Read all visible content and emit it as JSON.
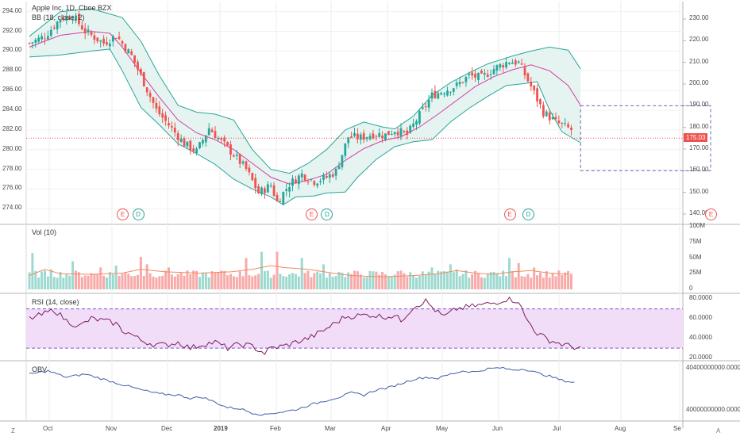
{
  "header": {
    "symbol_title": "Apple Inc, 1D, Cboe BZX",
    "bb_label": "BB (18, close, 2)",
    "vol_label": "Vol (10)",
    "rsi_label": "RSI (14, close)",
    "obv_label": "OBV"
  },
  "price_tag": "175.03",
  "corner_left": "Z",
  "corner_right": "A",
  "colors": {
    "up": "#26a69a",
    "down": "#ef5350",
    "bb_band": "#26a69a",
    "bb_fill": "#e6f4f1",
    "bb_mid": "#d63ca5",
    "rsi_line": "#7b1f64",
    "rsi_fill": "#f1ddf8",
    "rsi_level": "#7e57c2",
    "vol_ma": "#f28b62",
    "obv_line": "#3f5fa8",
    "rect": "#5c6bc0",
    "price_line": "#ef5350"
  },
  "chart_data": [
    {
      "type": "candlestick",
      "name": "price",
      "left_axis": {
        "ylim": [
          273.3,
          294.7
        ],
        "ticks": [
          "274.00",
          "276.00",
          "278.00",
          "280.00",
          "282.00",
          "284.00",
          "286.00",
          "288.00",
          "290.00",
          "292.00",
          "294.00"
        ]
      },
      "right_axis": {
        "ticks": [
          "140.00",
          "150.00",
          "160.00",
          "170.00",
          "180.00",
          "190.00",
          "200.00",
          "210.00",
          "220.00",
          "230.00"
        ]
      },
      "x_labels": [
        "Oct",
        "Nov",
        "Dec",
        "2019",
        "Feb",
        "Mar",
        "Apr",
        "May",
        "Jun",
        "Jul",
        "Aug",
        "Se"
      ],
      "last_price": 175.03,
      "close_path": [
        [
          0,
          290.8
        ],
        [
          5,
          291.5
        ],
        [
          10,
          293.3
        ],
        [
          14,
          293.6
        ],
        [
          18,
          292.0
        ],
        [
          24,
          290.8
        ],
        [
          28,
          291.6
        ],
        [
          33,
          289.5
        ],
        [
          37,
          286.8
        ],
        [
          41,
          284.0
        ],
        [
          45,
          282.5
        ],
        [
          50,
          280.6
        ],
        [
          54,
          279.8
        ],
        [
          58,
          282.2
        ],
        [
          62,
          280.8
        ],
        [
          66,
          279.5
        ],
        [
          70,
          278.0
        ],
        [
          74,
          275.6
        ],
        [
          78,
          276.4
        ],
        [
          80,
          274.7
        ],
        [
          84,
          276.5
        ],
        [
          88,
          277.5
        ],
        [
          92,
          276.8
        ],
        [
          96,
          277.2
        ],
        [
          99,
          277.8
        ],
        [
          103,
          281.3
        ],
        [
          107,
          281.2
        ],
        [
          111,
          281.6
        ],
        [
          115,
          281.5
        ],
        [
          118,
          282.0
        ],
        [
          122,
          281.5
        ],
        [
          126,
          283.5
        ],
        [
          130,
          285.5
        ],
        [
          134,
          286.0
        ],
        [
          138,
          286.5
        ],
        [
          142,
          287.5
        ],
        [
          146,
          287.3
        ],
        [
          150,
          288.2
        ],
        [
          155,
          289.0
        ],
        [
          158,
          288.8
        ],
        [
          162,
          286.4
        ],
        [
          166,
          283.8
        ],
        [
          170,
          282.8
        ],
        [
          175,
          282.0
        ]
      ],
      "bb_upper": [
        [
          0,
          291.5
        ],
        [
          10,
          294.0
        ],
        [
          20,
          294.3
        ],
        [
          30,
          293.4
        ],
        [
          36,
          291.0
        ],
        [
          42,
          287.5
        ],
        [
          48,
          284.5
        ],
        [
          54,
          283.8
        ],
        [
          60,
          283.6
        ],
        [
          66,
          283.0
        ],
        [
          72,
          280.0
        ],
        [
          78,
          278.0
        ],
        [
          84,
          277.6
        ],
        [
          90,
          278.6
        ],
        [
          96,
          280.0
        ],
        [
          102,
          282.0
        ],
        [
          108,
          282.8
        ],
        [
          114,
          282.3
        ],
        [
          118,
          282.1
        ],
        [
          124,
          283.4
        ],
        [
          130,
          285.5
        ],
        [
          136,
          286.8
        ],
        [
          142,
          287.8
        ],
        [
          148,
          288.7
        ],
        [
          156,
          289.5
        ],
        [
          162,
          290.0
        ],
        [
          168,
          290.4
        ],
        [
          174,
          290.1
        ],
        [
          178,
          288.2
        ]
      ],
      "bb_mid": [
        [
          0,
          290.4
        ],
        [
          10,
          291.6
        ],
        [
          20,
          292.0
        ],
        [
          26,
          291.8
        ],
        [
          30,
          290.4
        ],
        [
          36,
          287.8
        ],
        [
          42,
          285.3
        ],
        [
          48,
          283.0
        ],
        [
          54,
          281.7
        ],
        [
          60,
          281.0
        ],
        [
          66,
          280.0
        ],
        [
          72,
          278.6
        ],
        [
          78,
          277.2
        ],
        [
          84,
          276.5
        ],
        [
          90,
          276.9
        ],
        [
          96,
          277.5
        ],
        [
          102,
          278.9
        ],
        [
          108,
          280.1
        ],
        [
          114,
          280.9
        ],
        [
          120,
          281.3
        ],
        [
          126,
          282.3
        ],
        [
          132,
          283.6
        ],
        [
          138,
          285.0
        ],
        [
          144,
          286.4
        ],
        [
          150,
          287.4
        ],
        [
          156,
          288.1
        ],
        [
          162,
          288.6
        ],
        [
          168,
          288.0
        ],
        [
          174,
          286.5
        ],
        [
          178,
          284.5
        ]
      ],
      "bb_lower": [
        [
          0,
          289.4
        ],
        [
          10,
          289.6
        ],
        [
          20,
          290.0
        ],
        [
          26,
          290.2
        ],
        [
          30,
          288.0
        ],
        [
          36,
          284.3
        ],
        [
          42,
          282.5
        ],
        [
          48,
          280.6
        ],
        [
          54,
          279.6
        ],
        [
          60,
          278.5
        ],
        [
          66,
          277.0
        ],
        [
          72,
          276.0
        ],
        [
          78,
          275.2
        ],
        [
          82,
          274.4
        ],
        [
          86,
          275.2
        ],
        [
          92,
          275.3
        ],
        [
          96,
          275.6
        ],
        [
          102,
          275.7
        ],
        [
          106,
          277.2
        ],
        [
          112,
          279.0
        ],
        [
          118,
          280.3
        ],
        [
          124,
          280.8
        ],
        [
          130,
          281.0
        ],
        [
          136,
          282.8
        ],
        [
          142,
          284.2
        ],
        [
          148,
          285.4
        ],
        [
          154,
          286.5
        ],
        [
          160,
          286.7
        ],
        [
          164,
          286.9
        ],
        [
          168,
          284.0
        ],
        [
          172,
          281.8
        ],
        [
          178,
          280.7
        ]
      ],
      "rectangle": {
        "price_top": 190.0,
        "price_bottom": 160.0,
        "x_start": 178,
        "x_end": 220
      },
      "event_markers": [
        {
          "x": 30,
          "label": "E",
          "kind": "earnings"
        },
        {
          "x": 35,
          "label": "D",
          "kind": "dividend"
        },
        {
          "x": 91,
          "label": "E",
          "kind": "earnings"
        },
        {
          "x": 96,
          "label": "D",
          "kind": "dividend"
        },
        {
          "x": 155,
          "label": "E",
          "kind": "earnings"
        },
        {
          "x": 161,
          "label": "D",
          "kind": "dividend"
        },
        {
          "x": 220,
          "label": "E",
          "kind": "earnings"
        }
      ]
    },
    {
      "type": "bar",
      "name": "volume",
      "title": "Vol (10)",
      "ylim": [
        0,
        100
      ],
      "ticks": [
        "0",
        "25M",
        "50M",
        "75M",
        "100M"
      ],
      "base_level": 22,
      "spikes": [
        [
          1,
          58
        ],
        [
          7,
          32
        ],
        [
          14,
          45
        ],
        [
          23,
          35
        ],
        [
          28,
          38
        ],
        [
          36,
          52
        ],
        [
          38,
          40
        ],
        [
          45,
          35
        ],
        [
          62,
          30
        ],
        [
          70,
          50
        ],
        [
          75,
          60
        ],
        [
          80,
          60
        ],
        [
          88,
          50
        ],
        [
          95,
          40
        ],
        [
          100,
          28
        ],
        [
          120,
          30
        ],
        [
          130,
          35
        ],
        [
          136,
          40
        ],
        [
          138,
          32
        ],
        [
          150,
          28
        ],
        [
          155,
          50
        ],
        [
          158,
          42
        ],
        [
          163,
          35
        ]
      ],
      "ma_path": [
        [
          0,
          22
        ],
        [
          5,
          32
        ],
        [
          10,
          25
        ],
        [
          20,
          24
        ],
        [
          30,
          26
        ],
        [
          36,
          32
        ],
        [
          44,
          28
        ],
        [
          55,
          26
        ],
        [
          65,
          28
        ],
        [
          72,
          32
        ],
        [
          78,
          38
        ],
        [
          82,
          35
        ],
        [
          90,
          32
        ],
        [
          98,
          26
        ],
        [
          104,
          22
        ],
        [
          114,
          20
        ],
        [
          124,
          22
        ],
        [
          132,
          25
        ],
        [
          138,
          30
        ],
        [
          144,
          26
        ],
        [
          150,
          24
        ],
        [
          156,
          28
        ],
        [
          162,
          30
        ],
        [
          168,
          26
        ],
        [
          174,
          24
        ]
      ]
    },
    {
      "type": "line",
      "name": "rsi",
      "title": "RSI (14, close)",
      "ylim": [
        18,
        85
      ],
      "ticks": [
        "20.0000",
        "40.0000",
        "60.0000",
        "80.0000"
      ],
      "levels": [
        70,
        30
      ],
      "values": [
        [
          0,
          60
        ],
        [
          4,
          64
        ],
        [
          8,
          69
        ],
        [
          12,
          58
        ],
        [
          16,
          52
        ],
        [
          20,
          60
        ],
        [
          24,
          58
        ],
        [
          28,
          55
        ],
        [
          30,
          48
        ],
        [
          33,
          44
        ],
        [
          36,
          38
        ],
        [
          40,
          34
        ],
        [
          44,
          33
        ],
        [
          48,
          36
        ],
        [
          52,
          30
        ],
        [
          56,
          34
        ],
        [
          60,
          36
        ],
        [
          64,
          30
        ],
        [
          68,
          34
        ],
        [
          72,
          32
        ],
        [
          74,
          28
        ],
        [
          76,
          25
        ],
        [
          78,
          30
        ],
        [
          82,
          32
        ],
        [
          86,
          36
        ],
        [
          90,
          40
        ],
        [
          94,
          46
        ],
        [
          98,
          54
        ],
        [
          102,
          62
        ],
        [
          106,
          63
        ],
        [
          110,
          64
        ],
        [
          114,
          62
        ],
        [
          118,
          63
        ],
        [
          120,
          58
        ],
        [
          124,
          72
        ],
        [
          128,
          78
        ],
        [
          132,
          66
        ],
        [
          134,
          62
        ],
        [
          138,
          70
        ],
        [
          142,
          72
        ],
        [
          146,
          74
        ],
        [
          150,
          76
        ],
        [
          154,
          80
        ],
        [
          158,
          78
        ],
        [
          160,
          62
        ],
        [
          164,
          45
        ],
        [
          168,
          38
        ],
        [
          172,
          34
        ],
        [
          176,
          31
        ],
        [
          178,
          30
        ]
      ]
    },
    {
      "type": "line",
      "name": "obv",
      "title": "OBV",
      "ylim": [
        39940000000,
        40440000000
      ],
      "ticks": [
        "40000000000.0000",
        "40400000000.0000"
      ],
      "values": [
        [
          0,
          40350000000
        ],
        [
          6,
          40380000000
        ],
        [
          12,
          40320000000
        ],
        [
          18,
          40350000000
        ],
        [
          24,
          40300000000
        ],
        [
          30,
          40250000000
        ],
        [
          36,
          40200000000
        ],
        [
          42,
          40160000000
        ],
        [
          48,
          40150000000
        ],
        [
          52,
          40120000000
        ],
        [
          56,
          40130000000
        ],
        [
          60,
          40080000000
        ],
        [
          64,
          40030000000
        ],
        [
          68,
          40020000000
        ],
        [
          72,
          39980000000
        ],
        [
          76,
          39960000000
        ],
        [
          78,
          39975000000
        ],
        [
          82,
          39990000000
        ],
        [
          86,
          40010000000
        ],
        [
          90,
          40050000000
        ],
        [
          96,
          40100000000
        ],
        [
          100,
          40130000000
        ],
        [
          104,
          40170000000
        ],
        [
          108,
          40150000000
        ],
        [
          112,
          40200000000
        ],
        [
          116,
          40220000000
        ],
        [
          120,
          40260000000
        ],
        [
          124,
          40300000000
        ],
        [
          128,
          40320000000
        ],
        [
          132,
          40310000000
        ],
        [
          136,
          40350000000
        ],
        [
          140,
          40380000000
        ],
        [
          144,
          40370000000
        ],
        [
          148,
          40400000000
        ],
        [
          152,
          40410000000
        ],
        [
          156,
          40390000000
        ],
        [
          160,
          40400000000
        ],
        [
          164,
          40360000000
        ],
        [
          168,
          40330000000
        ],
        [
          172,
          40290000000
        ],
        [
          176,
          40270000000
        ]
      ]
    }
  ]
}
